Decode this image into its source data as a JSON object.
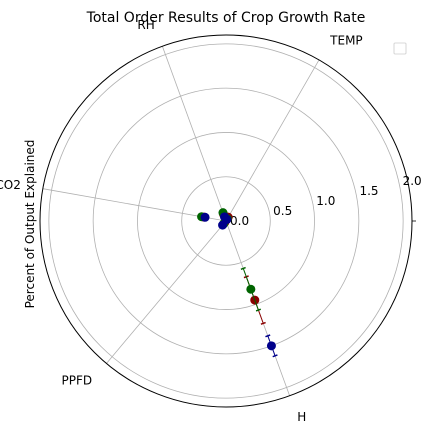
{
  "chart_data": {
    "type": "scatter",
    "projection": "polar",
    "title": "Total Order Results of Crop Growth Rate",
    "ylabel": "Percent of Output Explained",
    "rlim": [
      0,
      2.1
    ],
    "r_ticks": [
      0.0,
      0.5,
      1.0,
      1.5,
      2.0
    ],
    "r_tick_labels": [
      "0.0",
      "0.5",
      "1.0",
      "1.5",
      "2.0"
    ],
    "theta_direction": "clockwise",
    "theta_zero": "north",
    "categories": [
      "TEMP",
      "H",
      "PPFD",
      "CO2",
      "RH"
    ],
    "category_angles_deg": [
      30,
      160,
      220,
      280,
      340
    ],
    "grid": true,
    "legend": {
      "placement": "top-right",
      "entries": []
    },
    "series": [
      {
        "color": "#8b0000",
        "values": [
          0.05,
          0.95,
          0.02,
          0.25,
          0.08
        ],
        "errors": [
          0.02,
          0.28,
          0.01,
          0.04,
          0.02
        ]
      },
      {
        "color": "#006400",
        "values": [
          0.03,
          0.82,
          0.04,
          0.28,
          0.1
        ],
        "errors": [
          0.01,
          0.25,
          0.01,
          0.03,
          0.02
        ]
      },
      {
        "color": "#00008b",
        "values": [
          0.02,
          1.5,
          0.06,
          0.24,
          0.05
        ],
        "errors": [
          0.01,
          0.12,
          0.02,
          0.03,
          0.01
        ]
      }
    ]
  }
}
